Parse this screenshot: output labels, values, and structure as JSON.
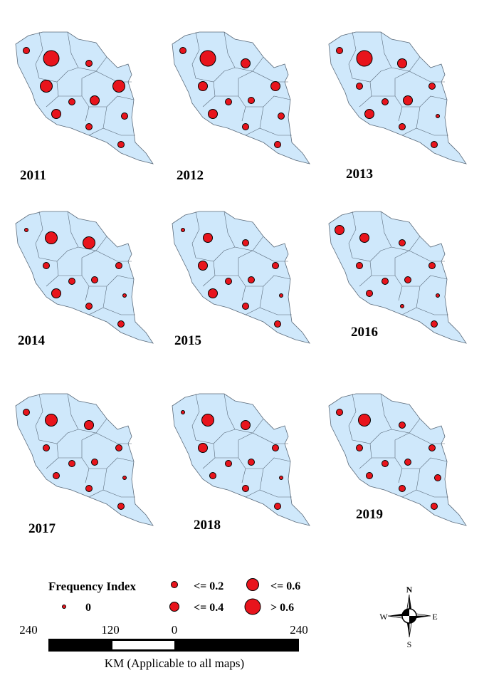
{
  "maps": [
    {
      "year": "2011"
    },
    {
      "year": "2012"
    },
    {
      "year": "2013"
    },
    {
      "year": "2014"
    },
    {
      "year": "2015"
    },
    {
      "year": "2016"
    },
    {
      "year": "2017"
    },
    {
      "year": "2018"
    },
    {
      "year": "2019"
    }
  ],
  "legend": {
    "title": "Frequency Index",
    "items": [
      "0",
      "<= 0.2",
      "<= 0.4",
      "<= 0.6",
      "> 0.6"
    ]
  },
  "scale_bar": {
    "ticks": [
      "240",
      "120",
      "0",
      "240"
    ],
    "caption": "KM (Applicable to all maps)"
  },
  "compass": {
    "n": "N",
    "s": "S",
    "e": "E",
    "w": "W"
  }
}
